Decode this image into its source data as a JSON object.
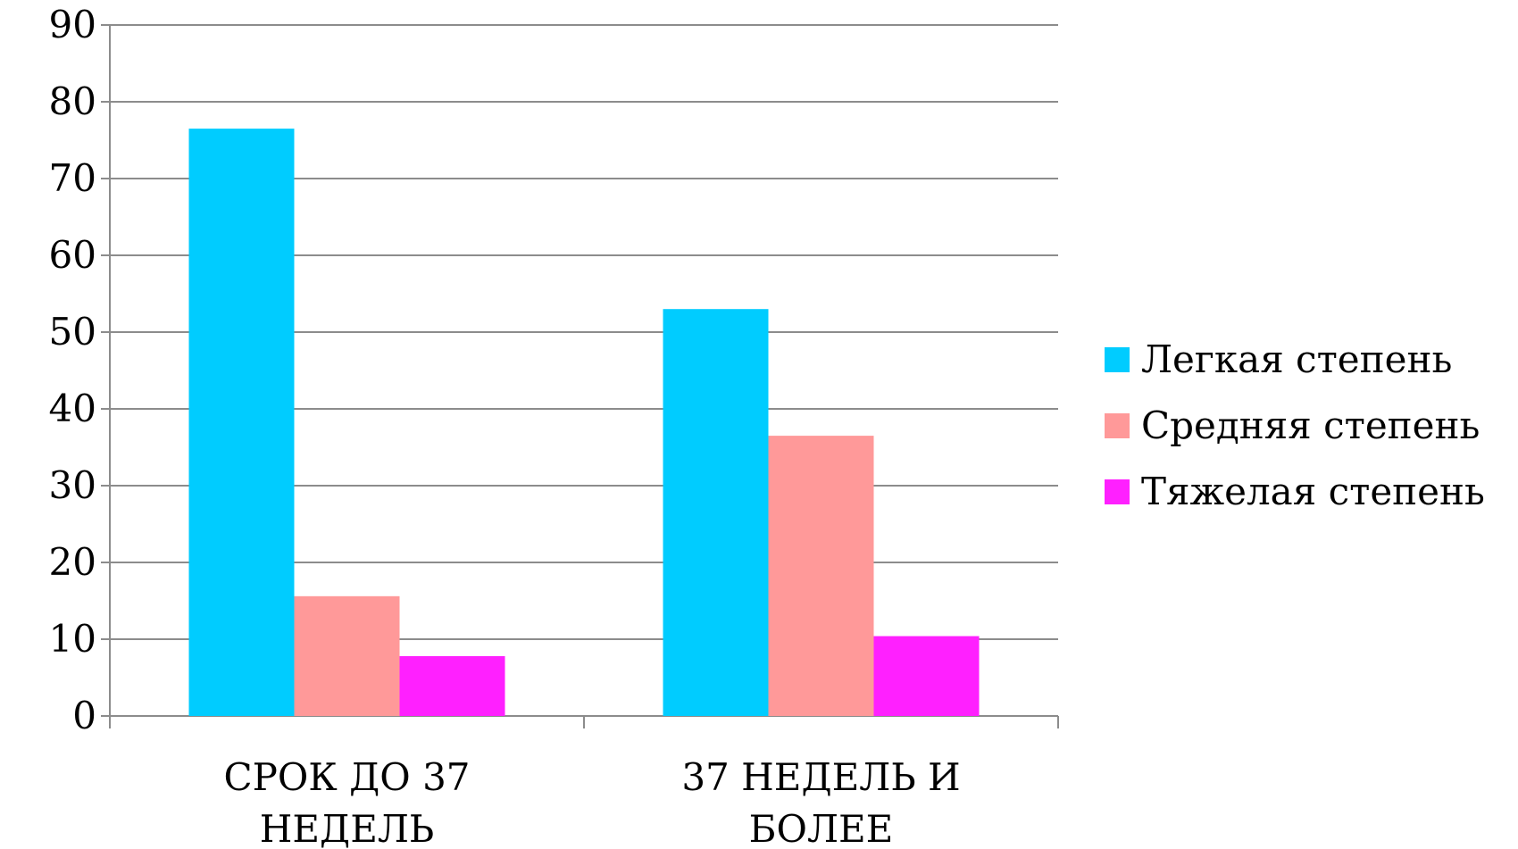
{
  "chart_data": {
    "type": "bar",
    "categories": [
      [
        "СРОК ДО 37",
        "НЕДЕЛЬ"
      ],
      [
        "37 НЕДЕЛЬ И",
        "БОЛЕЕ"
      ]
    ],
    "series": [
      {
        "name": "Легкая степень",
        "values": [
          76.5,
          53
        ],
        "color": "#00CCFF"
      },
      {
        "name": "Средняя степень",
        "values": [
          15.6,
          36.5
        ],
        "color": "#FF9999"
      },
      {
        "name": "Тяжелая степень",
        "values": [
          7.8,
          10.4
        ],
        "color": "#FF20FF"
      }
    ],
    "ylim": [
      0,
      90
    ],
    "yticks": [
      0,
      10,
      20,
      30,
      40,
      50,
      60,
      70,
      80,
      90
    ],
    "grid": true,
    "legend_position": "right"
  }
}
